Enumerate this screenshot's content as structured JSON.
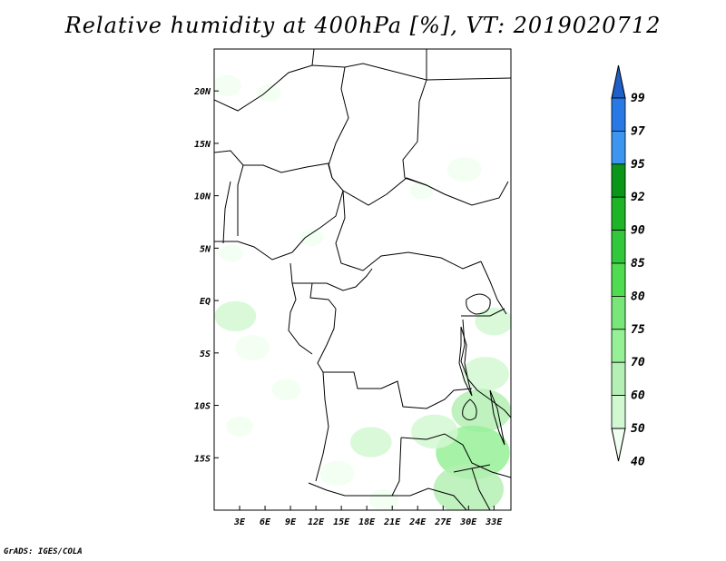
{
  "title": "Relative humidity at 400hPa [%], VT: 2019020712",
  "footer": "GrADS: IGES/COLA",
  "map": {
    "region": "Central Africa",
    "lat_range": [
      -20,
      24
    ],
    "lon_range": [
      0,
      35
    ],
    "y_tick_labels": [
      "20N",
      "15N",
      "10N",
      "5N",
      "EQ",
      "5S",
      "10S",
      "15S"
    ],
    "y_tick_values": [
      20,
      15,
      10,
      5,
      0,
      -5,
      -10,
      -15
    ],
    "x_tick_labels": [
      "3E",
      "6E",
      "9E",
      "12E",
      "15E",
      "18E",
      "21E",
      "24E",
      "27E",
      "30E",
      "33E"
    ],
    "x_tick_values": [
      3,
      6,
      9,
      12,
      15,
      18,
      21,
      24,
      27,
      30,
      33
    ]
  },
  "colorbar": {
    "labels": [
      "99",
      "97",
      "95",
      "92",
      "90",
      "85",
      "80",
      "75",
      "70",
      "60",
      "50",
      "40"
    ],
    "colors": [
      "#1e5fc8",
      "#2878e6",
      "#3c96f0",
      "#0a9619",
      "#1eb428",
      "#32c83c",
      "#50dc50",
      "#78e678",
      "#96f096",
      "#b4f0b4",
      "#d2f8d2",
      "#f0fff0"
    ]
  },
  "chart_data": {
    "type": "heatmap",
    "title": "Relative humidity at 400hPa [%], VT: 2019020712",
    "variable": "Relative humidity",
    "level": "400hPa",
    "units": "%",
    "valid_time": "2019020712",
    "contour_levels": [
      40,
      50,
      60,
      70,
      75,
      80,
      85,
      90,
      92,
      95,
      97,
      99
    ],
    "x_range_lon": [
      0,
      35
    ],
    "y_range_lat": [
      -20,
      24
    ],
    "humid_areas": [
      {
        "lon": 1.5,
        "lat": 20.5,
        "value": 45
      },
      {
        "lon": 6.5,
        "lat": 19.8,
        "value": 42
      },
      {
        "lon": 29.5,
        "lat": 12.5,
        "value": 48
      },
      {
        "lon": 24.5,
        "lat": 10.5,
        "value": 42
      },
      {
        "lon": 11.5,
        "lat": 6.0,
        "value": 42
      },
      {
        "lon": 2.0,
        "lat": 4.5,
        "value": 42
      },
      {
        "lon": 2.5,
        "lat": -1.5,
        "value": 52
      },
      {
        "lon": 4.5,
        "lat": -4.5,
        "value": 48
      },
      {
        "lon": 8.5,
        "lat": -8.5,
        "value": 45
      },
      {
        "lon": 3.0,
        "lat": -12.0,
        "value": 44
      },
      {
        "lon": 33.0,
        "lat": -2.0,
        "value": 50
      },
      {
        "lon": 32.0,
        "lat": -7.0,
        "value": 55
      },
      {
        "lon": 31.5,
        "lat": -10.5,
        "value": 62
      },
      {
        "lon": 30.5,
        "lat": -14.5,
        "value": 70
      },
      {
        "lon": 30.0,
        "lat": -18.0,
        "value": 68
      },
      {
        "lon": 26.0,
        "lat": -12.5,
        "value": 55
      },
      {
        "lon": 18.5,
        "lat": -13.5,
        "value": 52
      },
      {
        "lon": 14.5,
        "lat": -16.5,
        "value": 48
      },
      {
        "lon": 20.0,
        "lat": -19.0,
        "value": 45
      }
    ]
  }
}
